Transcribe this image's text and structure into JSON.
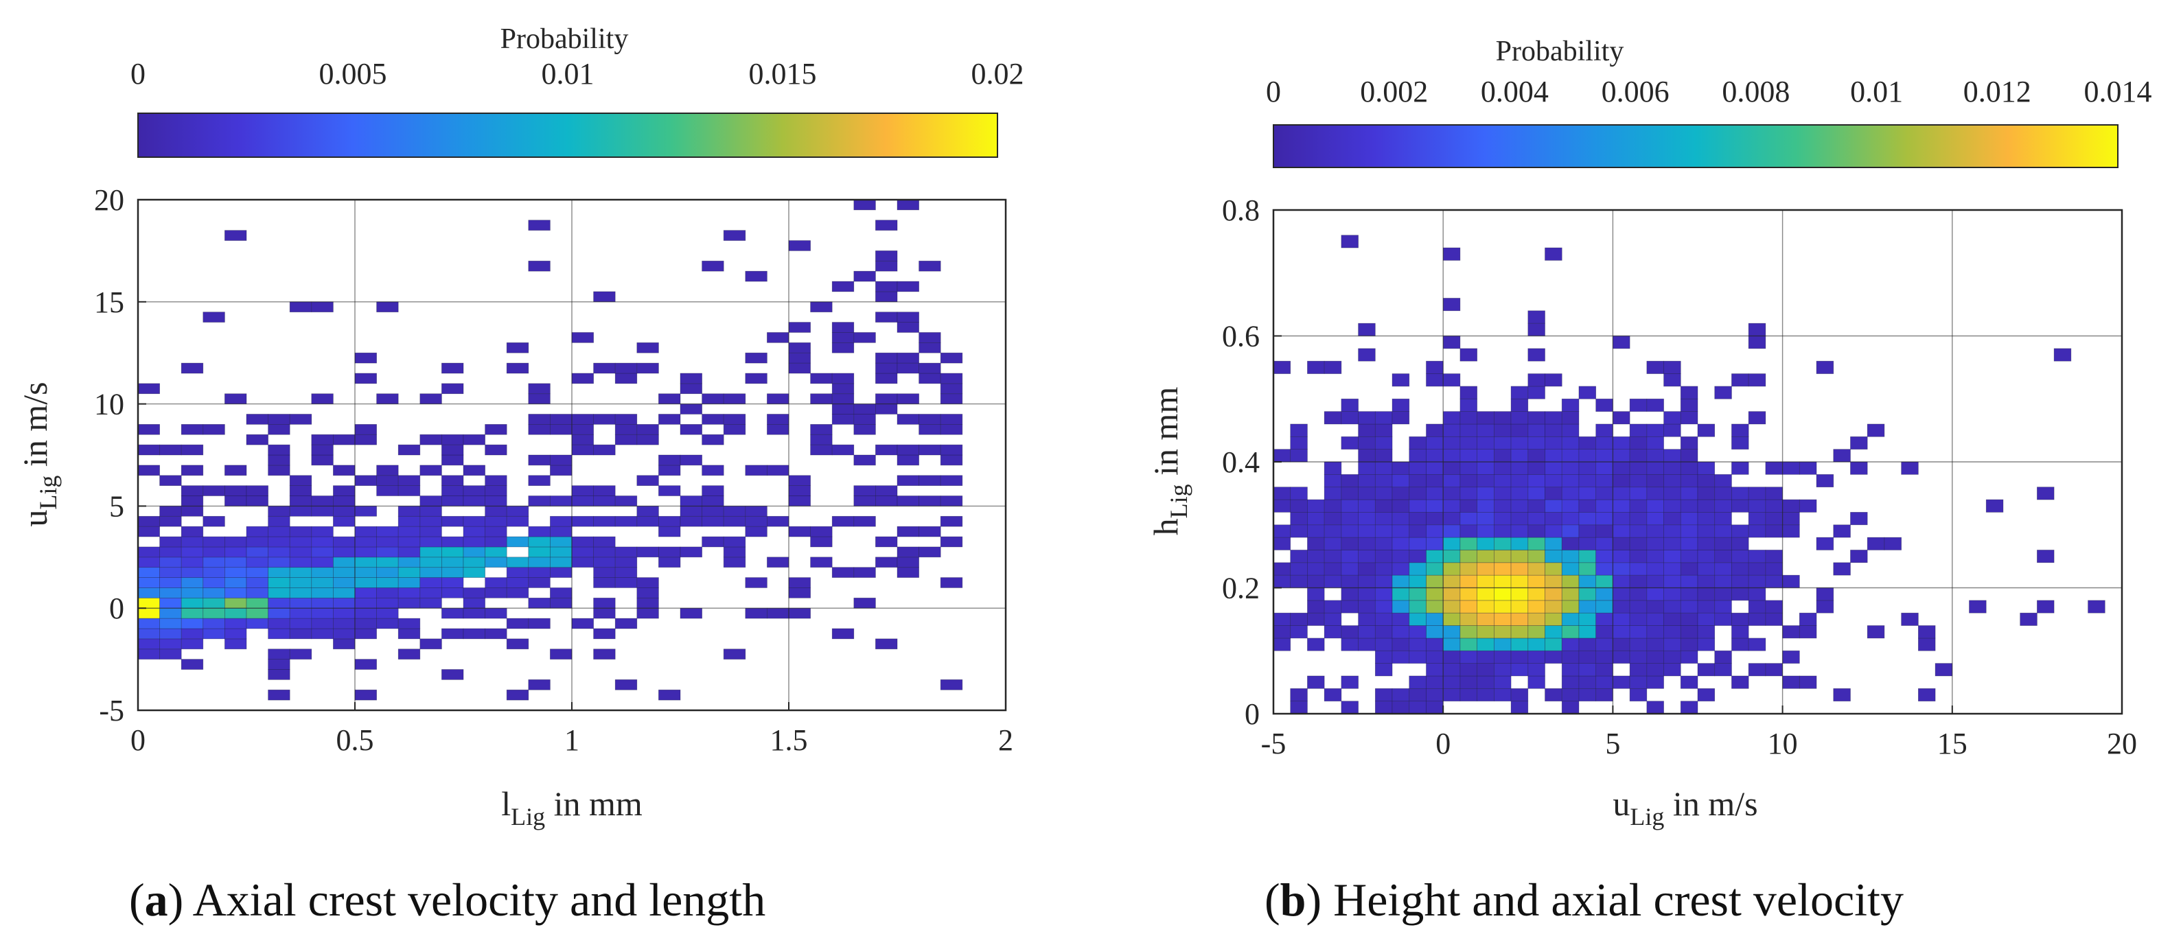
{
  "chart_data": [
    {
      "type": "heatmap",
      "panel": "a",
      "caption_label": "a",
      "caption_text": "Axial crest velocity and length",
      "xlabel": {
        "main": "l",
        "sub": "Lig",
        "rest": " in mm"
      },
      "ylabel": {
        "main": "u",
        "sub": "Lig",
        "rest": " in m/s"
      },
      "xlim": [
        0,
        2
      ],
      "ylim": [
        -5,
        20
      ],
      "xticks": [
        "0",
        "0.5",
        "1",
        "1.5",
        "2"
      ],
      "xtick_values": [
        0,
        0.5,
        1,
        1.5,
        2
      ],
      "yticks": [
        "-5",
        "0",
        "5",
        "10",
        "15",
        "20"
      ],
      "ytick_values": [
        -5,
        0,
        5,
        10,
        15,
        20
      ],
      "colorbar": {
        "title": "Probability",
        "range": [
          0,
          0.02
        ],
        "ticks": [
          "0",
          "0.005",
          "0.01",
          "0.015",
          "0.02"
        ],
        "tick_values": [
          0,
          0.005,
          0.01,
          0.015,
          0.02
        ]
      },
      "bins": {
        "x_width": 0.05,
        "y_height": 0.5
      },
      "grid": true,
      "note": "2D probability histogram; high density near origin (~0.02) spreading along a band from (0,0) to (1.9,5) m/s"
    },
    {
      "type": "heatmap",
      "panel": "b",
      "caption_label": "b",
      "caption_text": "Height and axial crest velocity",
      "xlabel": {
        "main": "u",
        "sub": "Lig",
        "rest": " in m/s"
      },
      "ylabel": {
        "main": "h",
        "sub": "Lig",
        "rest": " in mm"
      },
      "xlim": [
        -5,
        20
      ],
      "ylim": [
        0,
        0.8
      ],
      "xticks": [
        "-5",
        "0",
        "5",
        "10",
        "15",
        "20"
      ],
      "xtick_values": [
        -5,
        0,
        5,
        10,
        15,
        20
      ],
      "yticks": [
        "0",
        "0.2",
        "0.4",
        "0.6",
        "0.8"
      ],
      "ytick_values": [
        0,
        0.2,
        0.4,
        0.6,
        0.8
      ],
      "colorbar": {
        "title": "Probability",
        "range": [
          0,
          0.014
        ],
        "ticks": [
          "0",
          "0.002",
          "0.004",
          "0.006",
          "0.008",
          "0.01",
          "0.012",
          "0.014"
        ],
        "tick_values": [
          0,
          0.002,
          0.004,
          0.006,
          0.008,
          0.01,
          0.012,
          0.014
        ]
      },
      "bins": {
        "x_width": 0.5,
        "y_height": 0.02
      },
      "grid": true,
      "note": "2D probability histogram; peak (~0.014) around u 0-3 m/s, h 0.13-0.22 mm"
    }
  ]
}
